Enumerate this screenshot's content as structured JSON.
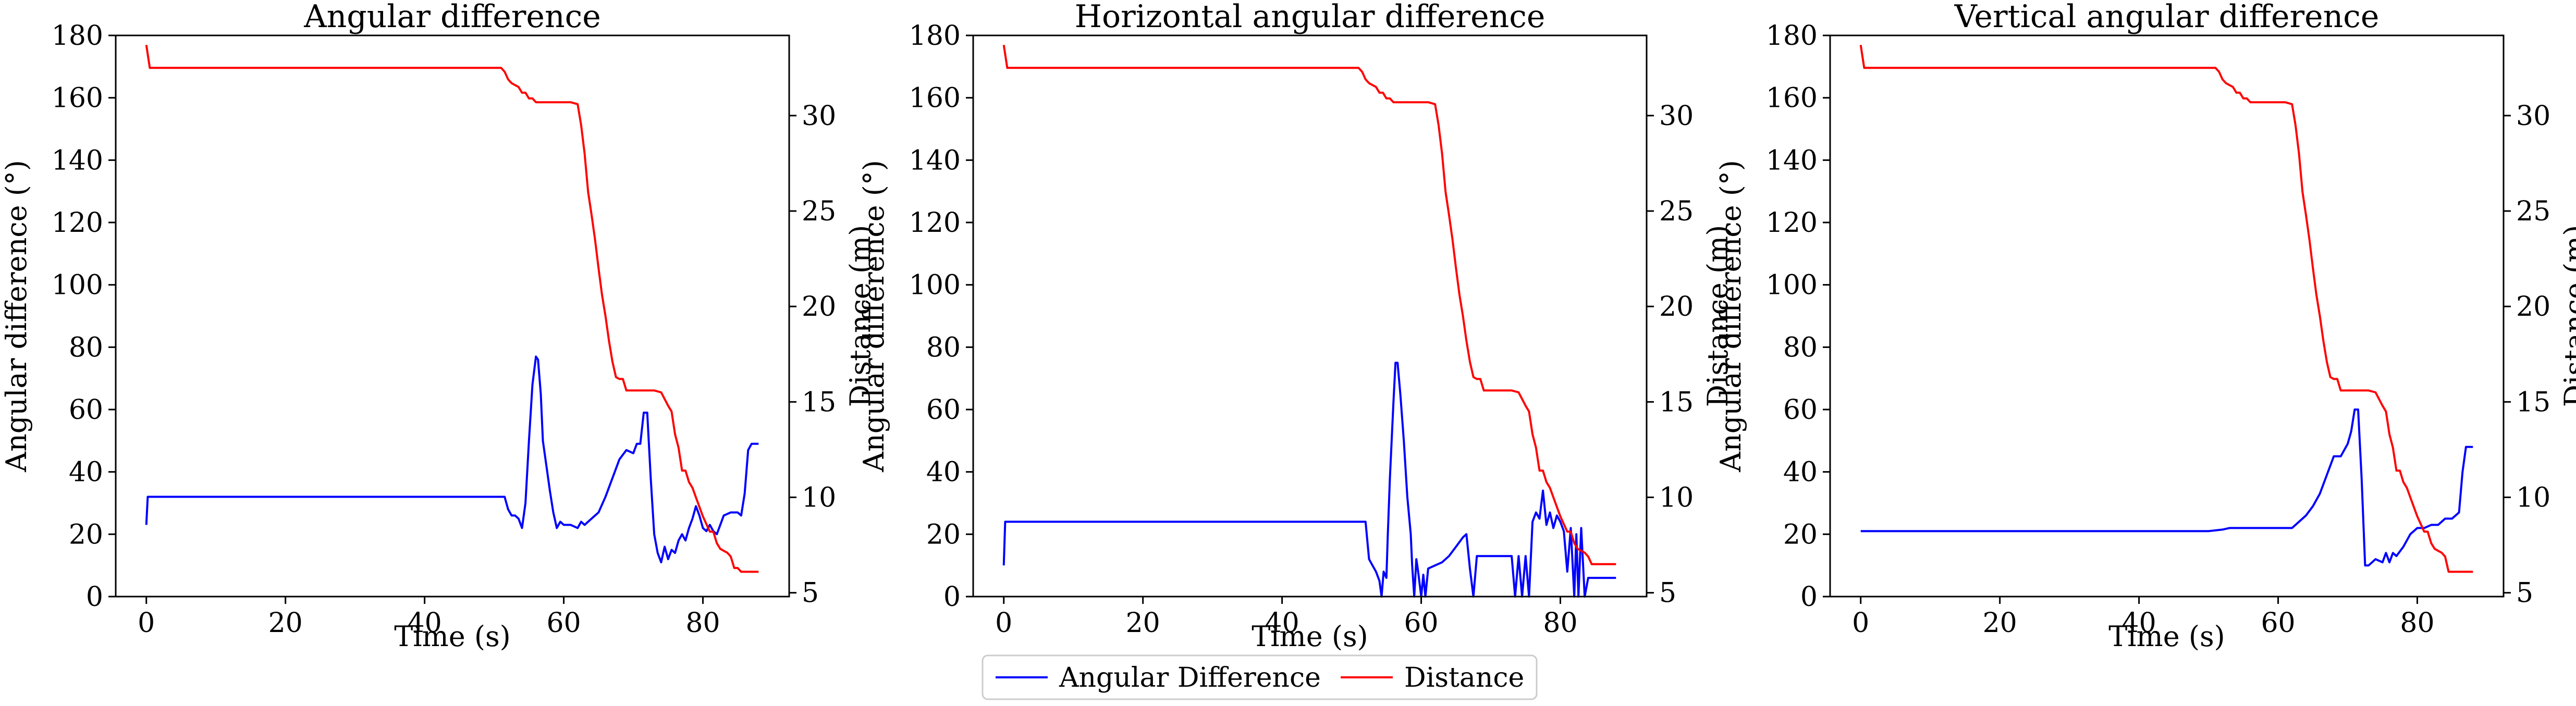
{
  "colors": {
    "angular": "#0000ff",
    "distance": "#ff0000",
    "axes": "#000000"
  },
  "legend": {
    "placement": "bottom-center",
    "entries": [
      {
        "label": "Angular Difference",
        "color": "#0000ff"
      },
      {
        "label": "Distance",
        "color": "#ff0000"
      }
    ]
  },
  "chart_data": [
    {
      "type": "line",
      "title": "Angular difference",
      "xlabel": "Time (s)",
      "ylabel": "Angular difference (°)",
      "y2label": "Distance (m)",
      "xlim": [
        -4.4,
        92.4
      ],
      "ylim": [
        0,
        180
      ],
      "y2lim": [
        4.8,
        34.2
      ],
      "xticks": [
        0,
        20,
        40,
        60,
        80
      ],
      "yticks": [
        0,
        20,
        40,
        60,
        80,
        100,
        120,
        140,
        160,
        180
      ],
      "y2ticks": [
        5,
        10,
        15,
        20,
        25,
        30
      ],
      "grid": false,
      "series": [
        {
          "name": "Angular Difference",
          "axis": "left",
          "color": "#0000ff",
          "x": [
            0,
            0.2,
            5,
            10,
            15,
            20,
            25,
            30,
            35,
            40,
            45,
            50,
            51.5,
            52,
            52.5,
            53,
            53.5,
            54,
            54.5,
            55,
            55.5,
            56,
            56.3,
            56.7,
            57,
            57.5,
            58,
            58.5,
            59,
            59.5,
            60,
            61,
            62,
            62.5,
            63,
            64,
            65,
            66,
            67,
            68,
            69,
            70,
            70.5,
            71,
            71.5,
            72,
            72.5,
            73,
            73.5,
            74,
            74.5,
            75,
            75.5,
            76,
            76.5,
            77,
            77.5,
            78,
            78.5,
            79,
            79.5,
            80,
            80.5,
            81,
            81.5,
            82,
            83,
            84,
            85,
            85.5,
            86,
            86.5,
            87,
            88
          ],
          "y": [
            23,
            32,
            32,
            32,
            32,
            32,
            32,
            32,
            32,
            32,
            32,
            32,
            32,
            28,
            26,
            26,
            25,
            22,
            30,
            50,
            68,
            77,
            76,
            65,
            50,
            42,
            34,
            27,
            22,
            24,
            23,
            23,
            22,
            24,
            23,
            25,
            27,
            32,
            38,
            44,
            47,
            46,
            49,
            49,
            59,
            59,
            38,
            20,
            14,
            11,
            16,
            12,
            15,
            14,
            18,
            20,
            18,
            22,
            25,
            29,
            26,
            22,
            21,
            23,
            21,
            20,
            26,
            27,
            27,
            26,
            33,
            47,
            49,
            49
          ]
        },
        {
          "name": "Distance",
          "axis": "right",
          "color": "#ff0000",
          "x": [
            0,
            0.5,
            5,
            10,
            20,
            30,
            40,
            50,
            51,
            51.5,
            52,
            52.5,
            53,
            53.5,
            54,
            54.5,
            55,
            55.5,
            56,
            57,
            58,
            59,
            60,
            61,
            62,
            62.5,
            63,
            63.5,
            64,
            64.5,
            65,
            65.5,
            66,
            66.5,
            67,
            67.5,
            68,
            68.5,
            69,
            69.5,
            70,
            70.5,
            71,
            72,
            73,
            74,
            75,
            75.5,
            76,
            76.5,
            77,
            77.5,
            78,
            78.5,
            79,
            79.5,
            80,
            80.5,
            81,
            81.5,
            82,
            82.5,
            83,
            83.5,
            84,
            84.5,
            85,
            85.5,
            86,
            87,
            88
          ],
          "y": [
            33.7,
            32.5,
            32.5,
            32.5,
            32.5,
            32.5,
            32.5,
            32.5,
            32.5,
            32.3,
            31.9,
            31.7,
            31.6,
            31.5,
            31.2,
            31.2,
            30.9,
            30.9,
            30.7,
            30.7,
            30.7,
            30.7,
            30.7,
            30.7,
            30.6,
            29.5,
            28,
            26,
            24.8,
            23.5,
            22,
            20.6,
            19.5,
            18.2,
            17.1,
            16.3,
            16.2,
            16.2,
            15.6,
            15.6,
            15.6,
            15.6,
            15.6,
            15.6,
            15.6,
            15.5,
            14.8,
            14.5,
            13.3,
            12.6,
            11.4,
            11.4,
            10.8,
            10.5,
            10,
            9.5,
            9,
            8.6,
            8.2,
            8.2,
            7.6,
            7.3,
            7.2,
            7.1,
            6.9,
            6.3,
            6.3,
            6.1,
            6.1,
            6.1,
            6.1
          ]
        }
      ]
    },
    {
      "type": "line",
      "title": "Horizontal angular difference",
      "xlabel": "Time (s)",
      "ylabel": "Angular difference (°)",
      "y2label": "Distance (m)",
      "xlim": [
        -4.4,
        92.4
      ],
      "ylim": [
        0,
        180
      ],
      "y2lim": [
        4.8,
        34.2
      ],
      "xticks": [
        0,
        20,
        40,
        60,
        80
      ],
      "yticks": [
        0,
        20,
        40,
        60,
        80,
        100,
        120,
        140,
        160,
        180
      ],
      "y2ticks": [
        5,
        10,
        15,
        20,
        25,
        30
      ],
      "grid": false,
      "series": [
        {
          "name": "Angular Difference",
          "axis": "left",
          "color": "#0000ff",
          "x": [
            0,
            0.2,
            5,
            10,
            20,
            30,
            40,
            50,
            51.5,
            52,
            52.5,
            53,
            53.5,
            54,
            54.3,
            54.6,
            55,
            55.2,
            55.5,
            56,
            56.3,
            56.6,
            57,
            57.5,
            58,
            58.5,
            58.7,
            59,
            59.3,
            59.5,
            60,
            60.3,
            60.6,
            61,
            62,
            63,
            64,
            65,
            66,
            66.5,
            67,
            67.5,
            68,
            69,
            70,
            71,
            72,
            73,
            73.5,
            74,
            74.5,
            75,
            75.5,
            76,
            76.5,
            77,
            77.5,
            78,
            78.5,
            79,
            79.5,
            80,
            80.5,
            81,
            81.5,
            82,
            82.3,
            82.6,
            83,
            83.5,
            84,
            85,
            86,
            87,
            88
          ],
          "y": [
            10,
            24,
            24,
            24,
            24,
            24,
            24,
            24,
            24,
            24,
            12,
            10,
            8,
            5,
            0,
            8,
            6,
            20,
            38,
            62,
            75,
            75,
            65,
            50,
            32,
            20,
            10,
            0,
            12,
            9,
            0,
            7,
            0,
            9,
            10,
            11,
            13,
            16,
            19,
            20,
            9,
            0,
            13,
            13,
            13,
            13,
            13,
            13,
            0,
            13,
            0,
            13,
            0,
            24,
            27,
            25,
            34,
            23,
            27,
            22,
            26,
            24,
            21,
            8,
            22,
            0,
            20,
            0,
            22,
            0,
            6,
            6,
            6,
            6,
            6
          ]
        },
        {
          "name": "Distance",
          "axis": "right",
          "color": "#ff0000",
          "x": [
            0,
            0.5,
            5,
            10,
            20,
            30,
            40,
            50,
            51,
            51.5,
            52,
            52.5,
            53,
            53.5,
            54,
            54.5,
            55,
            55.5,
            56,
            57,
            58,
            59,
            60,
            61,
            62,
            62.5,
            63,
            63.5,
            64,
            64.5,
            65,
            65.5,
            66,
            66.5,
            67,
            67.5,
            68,
            68.5,
            69,
            69.5,
            70,
            71,
            72,
            73,
            74,
            75,
            75.5,
            76,
            76.5,
            77,
            77.5,
            78,
            78.5,
            79,
            79.5,
            80,
            80.5,
            81,
            81.5,
            82,
            82.5,
            83,
            83.5,
            84,
            84.5,
            85,
            86,
            87,
            88
          ],
          "y": [
            33.7,
            32.5,
            32.5,
            32.5,
            32.5,
            32.5,
            32.5,
            32.5,
            32.5,
            32.3,
            31.9,
            31.7,
            31.6,
            31.5,
            31.2,
            31.2,
            30.9,
            30.9,
            30.7,
            30.7,
            30.7,
            30.7,
            30.7,
            30.7,
            30.6,
            29.5,
            28,
            26,
            24.8,
            23.5,
            22,
            20.6,
            19.5,
            18.2,
            17.1,
            16.3,
            16.2,
            16.2,
            15.6,
            15.6,
            15.6,
            15.6,
            15.6,
            15.6,
            15.5,
            14.8,
            14.5,
            13.3,
            12.6,
            11.4,
            11.4,
            10.8,
            10.5,
            10,
            9.5,
            9,
            8.6,
            8.2,
            8.2,
            7.6,
            7.3,
            7.2,
            7.1,
            6.9,
            6.5,
            6.5,
            6.5,
            6.5,
            6.5
          ]
        }
      ]
    },
    {
      "type": "line",
      "title": "Vertical angular difference",
      "xlabel": "Time (s)",
      "ylabel": "Angular difference (°)",
      "y2label": "Distance (m)",
      "xlim": [
        -4.4,
        92.4
      ],
      "ylim": [
        0,
        180
      ],
      "y2lim": [
        4.8,
        34.2
      ],
      "xticks": [
        0,
        20,
        40,
        60,
        80
      ],
      "yticks": [
        0,
        20,
        40,
        60,
        80,
        100,
        120,
        140,
        160,
        180
      ],
      "y2ticks": [
        5,
        10,
        15,
        20,
        25,
        30
      ],
      "grid": false,
      "series": [
        {
          "name": "Angular Difference",
          "axis": "left",
          "color": "#0000ff",
          "x": [
            0,
            5,
            10,
            20,
            30,
            40,
            50,
            52,
            53,
            55,
            58,
            60,
            62,
            63,
            64,
            65,
            66,
            67,
            68,
            69,
            70,
            70.5,
            71,
            71.5,
            72,
            72.5,
            73,
            74,
            75,
            75.5,
            76,
            76.5,
            77,
            78,
            79,
            80,
            81,
            82,
            83,
            84,
            85,
            86,
            86.5,
            87,
            88
          ],
          "y": [
            21,
            21,
            21,
            21,
            21,
            21,
            21,
            21.5,
            22,
            22,
            22,
            22,
            22,
            24,
            26,
            29,
            33,
            39,
            45,
            45,
            49,
            53,
            60,
            60,
            38,
            10,
            10,
            12,
            11,
            14,
            11,
            14,
            13,
            16,
            20,
            22,
            22,
            23,
            23,
            25,
            25,
            27,
            40,
            48,
            48
          ]
        },
        {
          "name": "Distance",
          "axis": "right",
          "color": "#ff0000",
          "x": [
            0,
            0.5,
            5,
            10,
            20,
            30,
            40,
            50,
            51,
            51.5,
            52,
            52.5,
            53,
            53.5,
            54,
            54.5,
            55,
            55.5,
            56,
            57,
            58,
            59,
            60,
            61,
            62,
            62.5,
            63,
            63.5,
            64,
            64.5,
            65,
            65.5,
            66,
            66.5,
            67,
            67.5,
            68,
            68.5,
            69,
            69.5,
            70,
            71,
            72,
            73,
            74,
            75,
            75.5,
            76,
            76.5,
            77,
            77.5,
            78,
            78.5,
            79,
            79.5,
            80,
            80.5,
            81,
            81.5,
            82,
            82.5,
            83,
            83.5,
            84,
            84.5,
            85,
            86,
            87,
            88
          ],
          "y": [
            33.7,
            32.5,
            32.5,
            32.5,
            32.5,
            32.5,
            32.5,
            32.5,
            32.5,
            32.3,
            31.9,
            31.7,
            31.6,
            31.5,
            31.2,
            31.2,
            30.9,
            30.9,
            30.7,
            30.7,
            30.7,
            30.7,
            30.7,
            30.7,
            30.6,
            29.5,
            28,
            26,
            24.8,
            23.5,
            22,
            20.6,
            19.5,
            18.2,
            17.1,
            16.3,
            16.2,
            16.2,
            15.6,
            15.6,
            15.6,
            15.6,
            15.6,
            15.6,
            15.5,
            14.8,
            14.5,
            13.3,
            12.6,
            11.4,
            11.4,
            10.8,
            10.5,
            10,
            9.5,
            9,
            8.6,
            8.2,
            8.2,
            7.6,
            7.3,
            7.2,
            7.1,
            6.9,
            6.1,
            6.1,
            6.1,
            6.1,
            6.1
          ]
        }
      ]
    }
  ]
}
